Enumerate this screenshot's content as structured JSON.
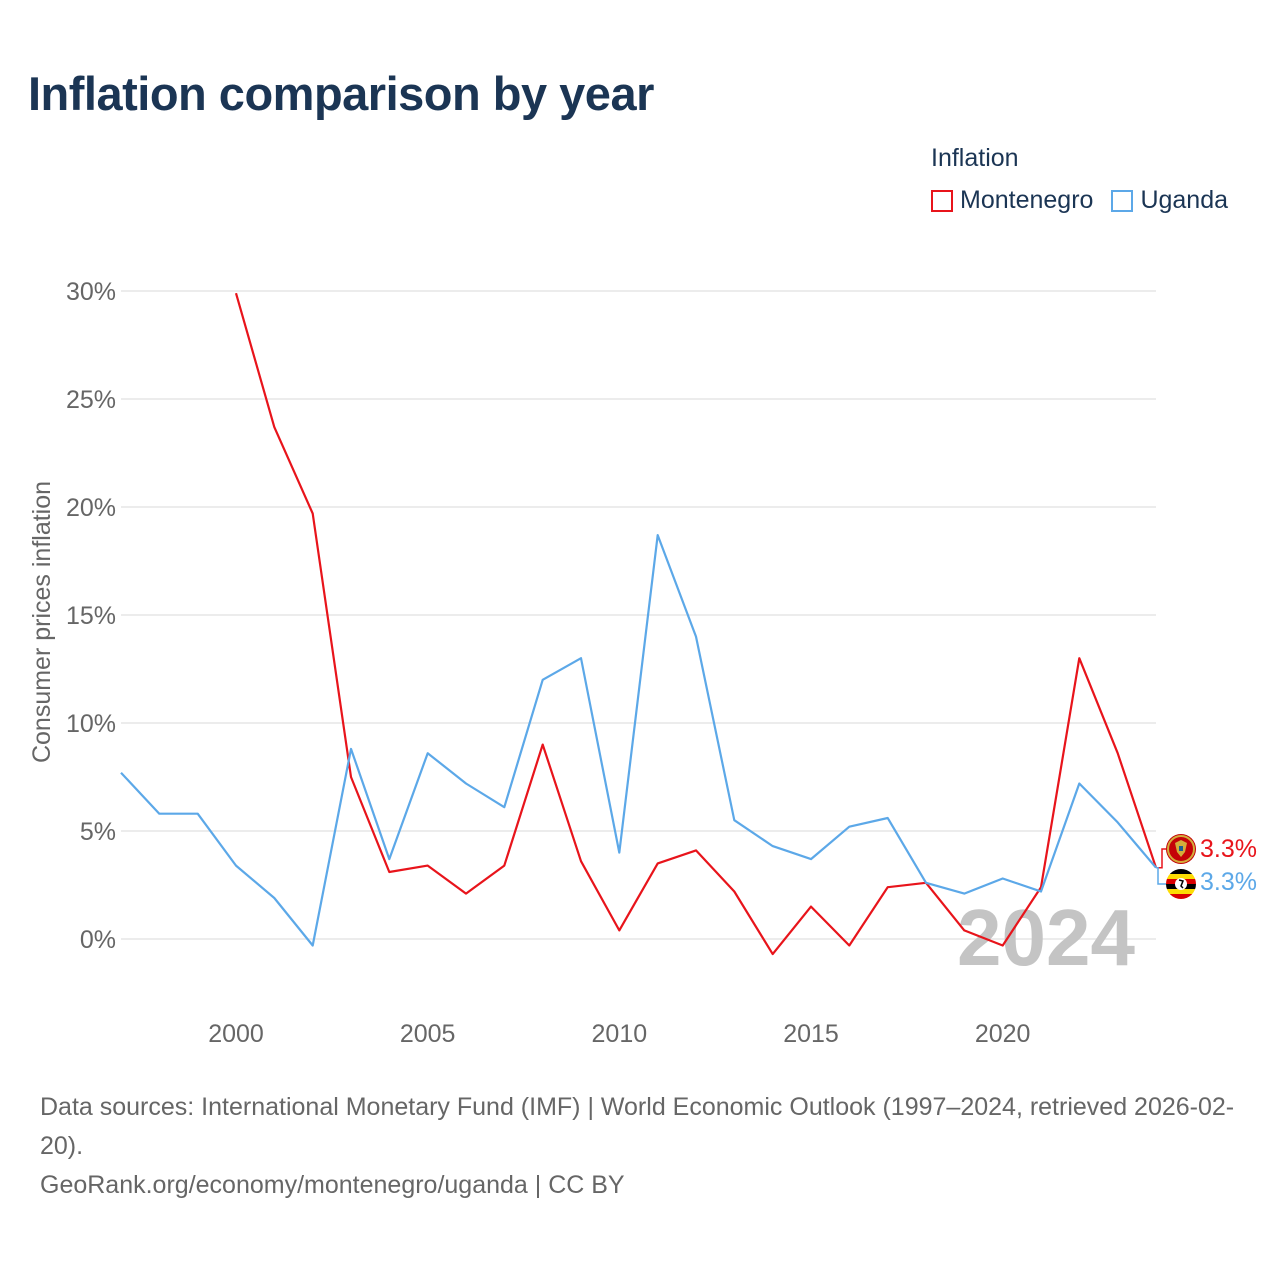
{
  "title": "Inflation comparison by year",
  "legend": {
    "title": "Inflation",
    "items": [
      {
        "label": "Montenegro",
        "color": "#e8141b"
      },
      {
        "label": "Uganda",
        "color": "#5ca8e8"
      }
    ]
  },
  "watermark_year": "2024",
  "end_labels": {
    "montenegro": "3.3%",
    "uganda": "3.3%"
  },
  "footer": {
    "sources": "Data sources: International Monetary Fund (IMF) | World Economic Outlook (1997–2024, retrieved 2026-02-20).",
    "link": "GeoRank.org/economy/montenegro/uganda | CC BY"
  },
  "chart_data": {
    "type": "line",
    "title": "Inflation comparison by year",
    "xlabel": "",
    "ylabel": "Consumer prices inflation",
    "xlim": [
      1997,
      2024
    ],
    "ylim": [
      -3,
      32
    ],
    "x_ticks": [
      2000,
      2005,
      2010,
      2015,
      2020
    ],
    "y_ticks": [
      0,
      5,
      10,
      15,
      20,
      25,
      30
    ],
    "y_tick_labels": [
      "0%",
      "5%",
      "10%",
      "15%",
      "20%",
      "25%",
      "30%"
    ],
    "grid": true,
    "legend_position": "top-right",
    "series": [
      {
        "name": "Montenegro",
        "color": "#e8141b",
        "x": [
          2000,
          2001,
          2002,
          2003,
          2004,
          2005,
          2006,
          2007,
          2008,
          2009,
          2010,
          2011,
          2012,
          2013,
          2014,
          2015,
          2016,
          2017,
          2018,
          2019,
          2020,
          2021,
          2022,
          2023,
          2024
        ],
        "values": [
          29.9,
          23.7,
          19.7,
          7.5,
          3.1,
          3.4,
          2.1,
          3.4,
          9.0,
          3.6,
          0.4,
          3.5,
          4.1,
          2.2,
          -0.7,
          1.5,
          -0.3,
          2.4,
          2.6,
          0.4,
          -0.3,
          2.4,
          13.0,
          8.6,
          3.3
        ]
      },
      {
        "name": "Uganda",
        "color": "#5ca8e8",
        "x": [
          1997,
          1998,
          1999,
          2000,
          2001,
          2002,
          2003,
          2004,
          2005,
          2006,
          2007,
          2008,
          2009,
          2010,
          2011,
          2012,
          2013,
          2014,
          2015,
          2016,
          2017,
          2018,
          2019,
          2020,
          2021,
          2022,
          2023,
          2024
        ],
        "values": [
          7.7,
          5.8,
          5.8,
          3.4,
          1.9,
          -0.3,
          8.8,
          3.7,
          8.6,
          7.2,
          6.1,
          12.0,
          13.0,
          4.0,
          18.7,
          14.0,
          5.5,
          4.3,
          3.7,
          5.2,
          5.6,
          2.6,
          2.1,
          2.8,
          2.2,
          7.2,
          5.4,
          3.3
        ]
      }
    ]
  }
}
